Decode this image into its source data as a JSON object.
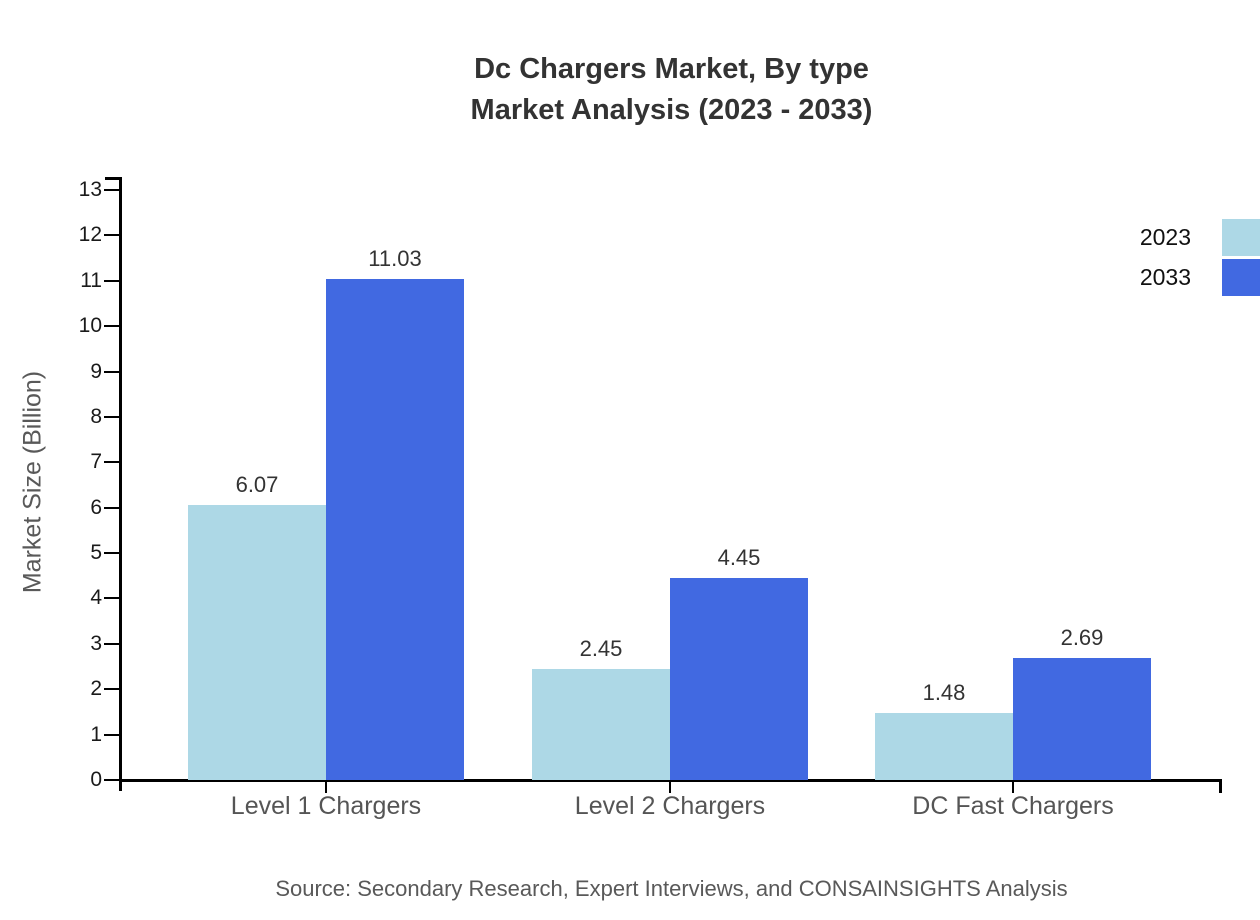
{
  "title": {
    "line1": "Dc Chargers Market, By type",
    "line2": "Market Analysis (2023 - 2033)"
  },
  "chart_data": {
    "type": "bar",
    "title": "Dc Chargers Market, By type Market Analysis (2023 - 2033)",
    "categories": [
      "Level 1 Chargers",
      "Level 2 Chargers",
      "DC Fast Chargers"
    ],
    "series": [
      {
        "name": "2023",
        "color": "#ADD8E6",
        "values": [
          6.07,
          2.45,
          1.48
        ]
      },
      {
        "name": "2033",
        "color": "#4169E1",
        "values": [
          11.03,
          4.45,
          2.69
        ]
      }
    ],
    "xlabel": "",
    "ylabel": "Market Size (Billion)",
    "ylim": [
      0,
      13
    ],
    "yticks": [
      0,
      1,
      2,
      3,
      4,
      5,
      6,
      7,
      8,
      9,
      10,
      11,
      12,
      13
    ],
    "grid": false,
    "legend_position": "top-right",
    "value_labels": true
  },
  "source": "Source: Secondary Research, Expert Interviews, and CONSAINSIGHTS Analysis",
  "colors": {
    "background": "#ffffff",
    "series_2023": "#ADD8E6",
    "series_2033": "#4169E1",
    "axis": "#000000",
    "title_text": "#333333",
    "tick_label_text": "#1a1a1a",
    "category_label_text": "#555555",
    "ylabel_text": "#595959",
    "value_label_text": "#333333",
    "legend_text": "#111111",
    "source_text": "#595959"
  }
}
